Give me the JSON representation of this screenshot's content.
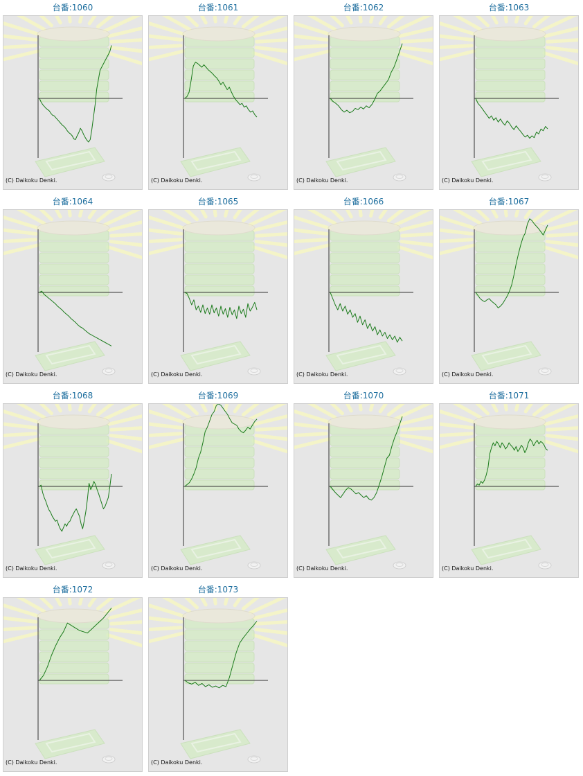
{
  "colors": {
    "title": "#1f6f9f",
    "panel_bg": "#e6e6e6",
    "panel_border": "#cfcfcf",
    "line": "#1a7a1a",
    "axis": "#333333",
    "bg_rays": "#f4f4c8",
    "bg_machine": "#d4ecc4"
  },
  "copyright": "(C) Daikoku Denki.",
  "background_icons": [
    "sunburst-rays",
    "stacked-trays-illustration",
    "bonus-tray-illustration",
    "coin-icon"
  ],
  "chart_data": [
    {
      "type": "line",
      "title": "台番:1060",
      "y": [
        0,
        -6,
        -10,
        -13,
        -16,
        -18,
        -20,
        -24,
        -27,
        -28,
        -31,
        -34,
        -37,
        -40,
        -43,
        -45,
        -48,
        -52,
        -55,
        -57,
        -60,
        -65,
        -66,
        -60,
        -55,
        -48,
        -52,
        -58,
        -63,
        -67,
        -70,
        -66,
        -50,
        -30,
        -10,
        15,
        30,
        45,
        50,
        55,
        60,
        65,
        70,
        75,
        85
      ]
    },
    {
      "type": "line",
      "title": "台番:1061",
      "y": [
        0,
        3,
        10,
        30,
        52,
        58,
        56,
        53,
        50,
        54,
        50,
        46,
        43,
        40,
        36,
        33,
        28,
        22,
        26,
        20,
        14,
        18,
        10,
        3,
        -2,
        -6,
        -10,
        -8,
        -14,
        -12,
        -18,
        -22,
        -20,
        -26,
        -30
      ]
    },
    {
      "type": "line",
      "title": "台番:1062",
      "y": [
        0,
        -5,
        -8,
        -12,
        -18,
        -22,
        -19,
        -23,
        -21,
        -16,
        -18,
        -14,
        -17,
        -12,
        -15,
        -10,
        -2,
        8,
        12,
        18,
        24,
        30,
        42,
        50,
        62,
        75,
        88
      ]
    },
    {
      "type": "line",
      "title": "台番:1063",
      "y": [
        0,
        -8,
        -12,
        -17,
        -22,
        -27,
        -32,
        -28,
        -35,
        -31,
        -38,
        -33,
        -39,
        -43,
        -36,
        -40,
        -46,
        -50,
        -44,
        -49,
        -53,
        -58,
        -62,
        -59,
        -64,
        -60,
        -63,
        -54,
        -57,
        -49,
        -52,
        -45,
        -49
      ]
    },
    {
      "type": "line",
      "title": "台番:1064",
      "y": [
        0,
        2,
        -3,
        -6,
        -9,
        -12,
        -15,
        -18,
        -22,
        -25,
        -28,
        -32,
        -35,
        -38,
        -42,
        -45,
        -48,
        -52,
        -55,
        -57,
        -60,
        -63,
        -66,
        -68,
        -70,
        -72,
        -74,
        -76,
        -78,
        -80,
        -82,
        -84,
        -86
      ]
    },
    {
      "type": "line",
      "title": "台番:1065",
      "y": [
        0,
        -2,
        -10,
        -20,
        -12,
        -28,
        -22,
        -32,
        -20,
        -34,
        -25,
        -35,
        -20,
        -33,
        -25,
        -38,
        -22,
        -35,
        -26,
        -40,
        -24,
        -36,
        -28,
        -42,
        -22,
        -34,
        -27,
        -40,
        -18,
        -30,
        -24,
        -16,
        -28
      ]
    },
    {
      "type": "line",
      "title": "台番:1066",
      "y": [
        0,
        -10,
        -20,
        -28,
        -18,
        -30,
        -22,
        -35,
        -28,
        -40,
        -34,
        -48,
        -38,
        -52,
        -44,
        -58,
        -50,
        -62,
        -55,
        -68,
        -60,
        -70,
        -64,
        -74,
        -68,
        -76,
        -70,
        -80,
        -72,
        -78
      ]
    },
    {
      "type": "line",
      "title": "台番:1067",
      "y": [
        0,
        -5,
        -10,
        -13,
        -15,
        -12,
        -10,
        -14,
        -17,
        -20,
        -25,
        -22,
        -18,
        -12,
        -6,
        2,
        12,
        28,
        46,
        62,
        76,
        88,
        95,
        110,
        118,
        115,
        110,
        106,
        102,
        97,
        92,
        100,
        108
      ]
    },
    {
      "type": "line",
      "title": "台番:1068",
      "y": [
        0,
        2,
        -10,
        -18,
        -24,
        -32,
        -38,
        -42,
        -48,
        -52,
        -56,
        -54,
        -62,
        -68,
        -72,
        -66,
        -60,
        -64,
        -58,
        -56,
        -50,
        -45,
        -40,
        -36,
        -42,
        -48,
        -60,
        -68,
        -55,
        -40,
        -20,
        5,
        -5,
        0,
        8,
        3,
        -5,
        -12,
        -20,
        -28,
        -36,
        -32,
        -25,
        -18,
        0,
        20
      ]
    },
    {
      "type": "line",
      "title": "台番:1069",
      "y": [
        0,
        3,
        6,
        12,
        20,
        30,
        45,
        55,
        70,
        88,
        95,
        105,
        115,
        120,
        130,
        135,
        130,
        125,
        120,
        115,
        108,
        102,
        100,
        98,
        92,
        88,
        86,
        90,
        95,
        92,
        98,
        104,
        108
      ]
    },
    {
      "type": "line",
      "title": "台番:1070",
      "y": [
        0,
        -5,
        -10,
        -14,
        -18,
        -12,
        -6,
        -2,
        -4,
        -8,
        -12,
        -10,
        -14,
        -18,
        -15,
        -20,
        -22,
        -18,
        -10,
        2,
        15,
        30,
        45,
        50,
        65,
        78,
        88,
        100,
        112
      ]
    },
    {
      "type": "line",
      "title": "台番:1071",
      "y": [
        0,
        4,
        2,
        8,
        5,
        10,
        18,
        30,
        52,
        62,
        70,
        65,
        72,
        68,
        62,
        70,
        66,
        60,
        64,
        70,
        66,
        63,
        58,
        64,
        56,
        60,
        66,
        62,
        54,
        60,
        70,
        76,
        72,
        65,
        70,
        74,
        68,
        72,
        70,
        66,
        60,
        58
      ]
    },
    {
      "type": "line",
      "title": "台番:1072",
      "y": [
        0,
        8,
        22,
        40,
        55,
        68,
        78,
        92,
        88,
        84,
        80,
        78,
        76,
        82,
        88,
        94,
        100,
        108,
        116
      ]
    },
    {
      "type": "line",
      "title": "台番:1073",
      "y": [
        0,
        -4,
        -6,
        -3,
        -8,
        -5,
        -10,
        -7,
        -11,
        -9,
        -12,
        -8,
        -10,
        5,
        25,
        45,
        60,
        68,
        75,
        82,
        88,
        95
      ]
    }
  ]
}
